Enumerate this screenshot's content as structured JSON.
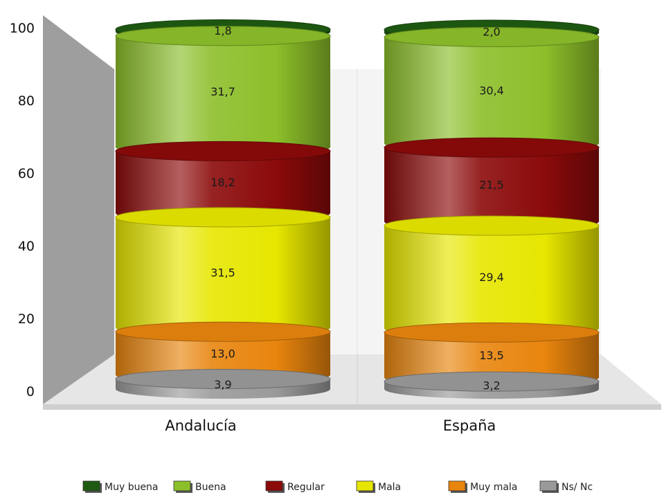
{
  "chart_data": {
    "type": "bar",
    "stacked": true,
    "style": "3d-cylinder",
    "categories": [
      "Andalucía",
      "España"
    ],
    "series": [
      {
        "name": "Ns/ Nc",
        "values": [
          "3,9",
          "3,2"
        ],
        "color": "#9a9a9a"
      },
      {
        "name": "Muy mala",
        "values": [
          "13,0",
          "13,5"
        ],
        "color": "#e8850e"
      },
      {
        "name": "Mala",
        "values": [
          "31,5",
          "29,4"
        ],
        "color": "#e6e600"
      },
      {
        "name": "Regular",
        "values": [
          "18,2",
          "21,5"
        ],
        "color": "#8b0a0a"
      },
      {
        "name": "Buena",
        "values": [
          "31,7",
          "30,4"
        ],
        "color": "#8cbf2a"
      },
      {
        "name": "Muy buena",
        "values": [
          "1,8",
          "2,0"
        ],
        "color": "#1f5a12"
      }
    ],
    "legend_order": [
      "Muy buena",
      "Buena",
      "Regular",
      "Mala",
      "Muy mala",
      "Ns/ Nc"
    ],
    "ylim": [
      0,
      100
    ],
    "yticks": [
      "0",
      "20",
      "40",
      "60",
      "80",
      "100"
    ],
    "grid": false,
    "legend_position": "bottom"
  }
}
